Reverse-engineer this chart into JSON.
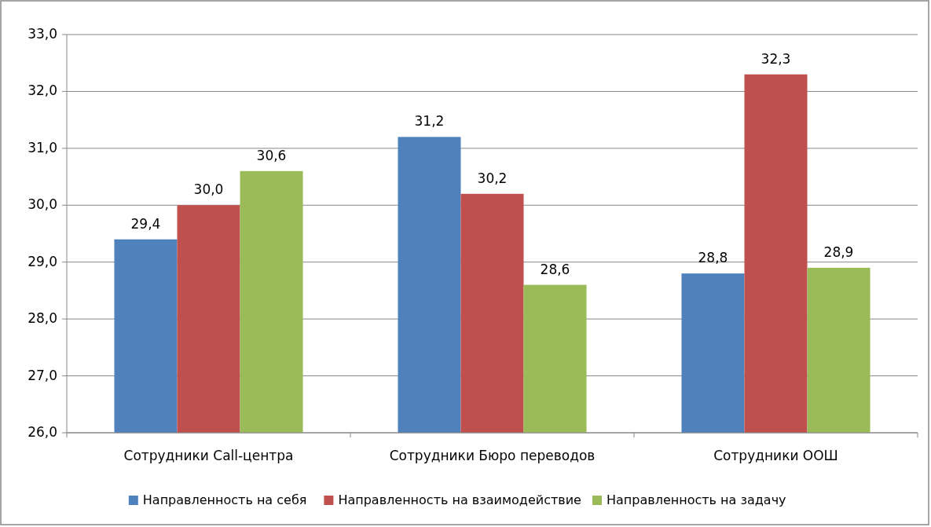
{
  "chart_data": {
    "type": "bar",
    "categories": [
      "Сотрудники Call-центра",
      "Сотрудники Бюро переводов",
      "Сотрудники ООШ"
    ],
    "series": [
      {
        "name": "Направленность на себя",
        "color": "#4f81bd",
        "values": [
          29.4,
          31.2,
          28.8
        ],
        "value_labels": [
          "29,4",
          "31,2",
          "28,8"
        ]
      },
      {
        "name": "Направленность на взаимодействие",
        "color": "#c0504d",
        "values": [
          30.0,
          30.2,
          32.3
        ],
        "value_labels": [
          "30,0",
          "30,2",
          "32,3"
        ]
      },
      {
        "name": "Направленность на задачу",
        "color": "#9bbb59",
        "values": [
          30.6,
          28.6,
          28.9
        ],
        "value_labels": [
          "30,6",
          "28,6",
          "28,9"
        ]
      }
    ],
    "ylim": [
      26,
      33
    ],
    "yticks": [
      {
        "value": 26,
        "label": "26,0"
      },
      {
        "value": 27,
        "label": "27,0"
      },
      {
        "value": 28,
        "label": "28,0"
      },
      {
        "value": 29,
        "label": "29,0"
      },
      {
        "value": 30,
        "label": "30,0"
      },
      {
        "value": 31,
        "label": "31,0"
      },
      {
        "value": 32,
        "label": "32,0"
      },
      {
        "value": 33,
        "label": "33,0"
      }
    ],
    "grid": "y",
    "legend": "bottom"
  }
}
